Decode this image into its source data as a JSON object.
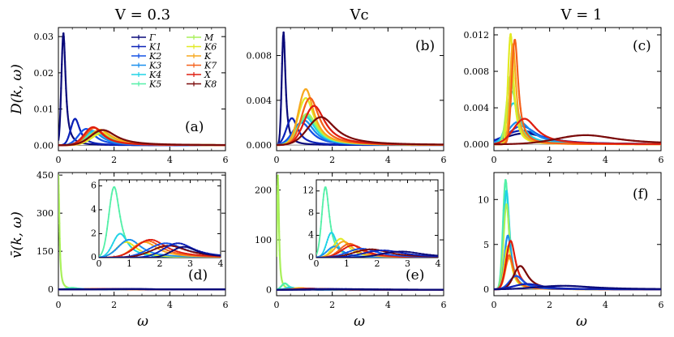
{
  "figure": {
    "column_titles": [
      "V = 0.3",
      "Vc",
      "V = 1"
    ],
    "ylabel_top": "D(k, ω)",
    "ylabel_bottom": "v̄(k, ω)",
    "xlabel": "ω"
  },
  "legend": [
    {
      "label": "Γ",
      "color": "#0a0a7a"
    },
    {
      "label": "K1",
      "color": "#0c22b8"
    },
    {
      "label": "K2",
      "color": "#1552e6"
    },
    {
      "label": "K3",
      "color": "#1b8fee"
    },
    {
      "label": "K4",
      "color": "#20d3e6"
    },
    {
      "label": "K5",
      "color": "#54f0a8"
    },
    {
      "label": "M",
      "color": "#a8f05a"
    },
    {
      "label": "K6",
      "color": "#e2ea24"
    },
    {
      "label": "K",
      "color": "#f7a81e"
    },
    {
      "label": "K7",
      "color": "#f5611a"
    },
    {
      "label": "X",
      "color": "#df1e10"
    },
    {
      "label": "K8",
      "color": "#7a0a0a"
    }
  ],
  "chart_data": [
    {
      "panel": "(a)",
      "type": "line",
      "title": "V = 0.3",
      "ylabel": "D(k, ω)",
      "xlim": [
        0,
        6
      ],
      "ylim": [
        -0.0015,
        0.0325
      ],
      "yticks": [
        "0.00",
        "0.01",
        "0.02",
        "0.03"
      ],
      "xticks": [
        "0",
        "2",
        "4",
        "6"
      ],
      "series": [
        {
          "name": "Γ",
          "peak_x": 0.18,
          "peak_y": 0.031,
          "width": 0.09
        },
        {
          "name": "K1",
          "peak_x": 0.6,
          "peak_y": 0.0073,
          "width": 0.2
        },
        {
          "name": "K2",
          "peak_x": 1.0,
          "peak_y": 0.0045,
          "width": 0.35
        },
        {
          "name": "K3",
          "peak_x": 1.2,
          "peak_y": 0.004,
          "width": 0.4
        },
        {
          "name": "K4",
          "peak_x": 1.3,
          "peak_y": 0.0038,
          "width": 0.45
        },
        {
          "name": "K5",
          "peak_x": 1.4,
          "peak_y": 0.0035,
          "width": 0.5
        },
        {
          "name": "M",
          "peak_x": 1.5,
          "peak_y": 0.0033,
          "width": 0.55
        },
        {
          "name": "K6",
          "peak_x": 1.6,
          "peak_y": 0.0034,
          "width": 0.5
        },
        {
          "name": "K",
          "peak_x": 1.5,
          "peak_y": 0.0043,
          "width": 0.45
        },
        {
          "name": "K7",
          "peak_x": 1.3,
          "peak_y": 0.0048,
          "width": 0.4
        },
        {
          "name": "X",
          "peak_x": 1.25,
          "peak_y": 0.005,
          "width": 0.4
        },
        {
          "name": "K8",
          "peak_x": 1.6,
          "peak_y": 0.0042,
          "width": 0.55
        }
      ]
    },
    {
      "panel": "(b)",
      "type": "line",
      "title": "Vc",
      "xlim": [
        0,
        6
      ],
      "ylim": [
        -0.0005,
        0.0105
      ],
      "yticks": [
        "0.000",
        "0.004",
        "0.008"
      ],
      "xticks": [
        "0",
        "2",
        "4",
        "6"
      ],
      "series": [
        {
          "name": "Γ",
          "peak_x": 0.25,
          "peak_y": 0.0101,
          "width": 0.08
        },
        {
          "name": "K1",
          "peak_x": 0.55,
          "peak_y": 0.0024,
          "width": 0.25
        },
        {
          "name": "K2",
          "peak_x": 0.9,
          "peak_y": 0.002,
          "width": 0.4
        },
        {
          "name": "K3",
          "peak_x": 1.0,
          "peak_y": 0.0022,
          "width": 0.4
        },
        {
          "name": "K4",
          "peak_x": 1.05,
          "peak_y": 0.0025,
          "width": 0.4
        },
        {
          "name": "K5",
          "peak_x": 1.1,
          "peak_y": 0.0026,
          "width": 0.4
        },
        {
          "name": "M",
          "peak_x": 1.1,
          "peak_y": 0.0028,
          "width": 0.4
        },
        {
          "name": "K6",
          "peak_x": 1.05,
          "peak_y": 0.0042,
          "width": 0.35
        },
        {
          "name": "K",
          "peak_x": 1.05,
          "peak_y": 0.005,
          "width": 0.33
        },
        {
          "name": "K7",
          "peak_x": 1.2,
          "peak_y": 0.0042,
          "width": 0.38
        },
        {
          "name": "X",
          "peak_x": 1.35,
          "peak_y": 0.0035,
          "width": 0.45
        },
        {
          "name": "K8",
          "peak_x": 1.6,
          "peak_y": 0.0025,
          "width": 0.6
        }
      ]
    },
    {
      "panel": "(c)",
      "type": "line",
      "title": "V = 1",
      "xlim": [
        0,
        6
      ],
      "ylim": [
        -0.0007,
        0.0128
      ],
      "yticks": [
        "0.000",
        "0.004",
        "0.008",
        "0.012"
      ],
      "xticks": [
        "0",
        "2",
        "4",
        "6"
      ],
      "series": [
        {
          "name": "Γ",
          "peak_x": 1.1,
          "peak_y": 0.0012,
          "width": 0.9
        },
        {
          "name": "K1",
          "peak_x": 1.0,
          "peak_y": 0.0015,
          "width": 0.8
        },
        {
          "name": "K2",
          "peak_x": 1.0,
          "peak_y": 0.002,
          "width": 0.6
        },
        {
          "name": "K3",
          "peak_x": 0.9,
          "peak_y": 0.0025,
          "width": 0.5
        },
        {
          "name": "K4",
          "peak_x": 0.7,
          "peak_y": 0.0045,
          "width": 0.3
        },
        {
          "name": "K5",
          "peak_x": 0.65,
          "peak_y": 0.0058,
          "width": 0.22
        },
        {
          "name": "M",
          "peak_x": 0.6,
          "peak_y": 0.0075,
          "width": 0.18
        },
        {
          "name": "K6",
          "peak_x": 0.6,
          "peak_y": 0.0121,
          "width": 0.12
        },
        {
          "name": "K",
          "peak_x": 0.68,
          "peak_y": 0.011,
          "width": 0.13
        },
        {
          "name": "K7",
          "peak_x": 0.75,
          "peak_y": 0.0115,
          "width": 0.14
        },
        {
          "name": "X",
          "peak_x": 1.1,
          "peak_y": 0.0028,
          "width": 0.5
        },
        {
          "name": "K8",
          "peak_x": 3.3,
          "peak_y": 0.001,
          "width": 1.3
        }
      ]
    },
    {
      "panel": "(d)",
      "type": "line",
      "ylabel": "v̄(k, ω)",
      "xlabel": "ω",
      "xlim": [
        0,
        6
      ],
      "ylim": [
        -25,
        460
      ],
      "yticks": [
        "0",
        "150",
        "300",
        "450"
      ],
      "xticks": [
        "0",
        "2",
        "4",
        "6"
      ],
      "inset": {
        "xlim": [
          0,
          4
        ],
        "ylim": [
          0,
          6.5
        ],
        "xticks": [
          "0",
          "1",
          "2",
          "3",
          "4"
        ],
        "yticks": [
          "0",
          "2",
          "4",
          "6"
        ]
      },
      "series": [
        {
          "name": "M",
          "peak_x": 0.0,
          "peak_y": 450,
          "width": 0.04
        },
        {
          "name": "K5",
          "peak_x": 0.5,
          "peak_y": 5.9,
          "width": 0.22
        },
        {
          "name": "K4",
          "peak_x": 0.7,
          "peak_y": 2.0,
          "width": 0.3
        },
        {
          "name": "K6",
          "peak_x": 0.9,
          "peak_y": 1.3,
          "width": 0.4
        },
        {
          "name": "K3",
          "peak_x": 1.0,
          "peak_y": 1.5,
          "width": 0.45
        },
        {
          "name": "K",
          "peak_x": 1.5,
          "peak_y": 1.3,
          "width": 0.5
        },
        {
          "name": "K7",
          "peak_x": 1.6,
          "peak_y": 1.4,
          "width": 0.55
        },
        {
          "name": "X",
          "peak_x": 1.7,
          "peak_y": 1.5,
          "width": 0.6
        },
        {
          "name": "K2",
          "peak_x": 2.2,
          "peak_y": 1.2,
          "width": 0.7
        },
        {
          "name": "K8",
          "peak_x": 2.3,
          "peak_y": 1.0,
          "width": 0.7
        },
        {
          "name": "K1",
          "peak_x": 2.6,
          "peak_y": 1.2,
          "width": 0.6
        },
        {
          "name": "Γ",
          "peak_x": 2.8,
          "peak_y": 0.9,
          "width": 0.5
        }
      ]
    },
    {
      "panel": "(e)",
      "type": "line",
      "xlabel": "ω",
      "xlim": [
        0,
        6
      ],
      "ylim": [
        -12,
        235
      ],
      "yticks": [
        "0",
        "100",
        "200"
      ],
      "xticks": [
        "0",
        "2",
        "4",
        "6"
      ],
      "inset": {
        "xlim": [
          0,
          4
        ],
        "ylim": [
          0,
          14
        ],
        "xticks": [
          "0",
          "1",
          "2",
          "3",
          "4"
        ],
        "yticks": [
          "0",
          "4",
          "8",
          "12"
        ]
      },
      "series": [
        {
          "name": "M",
          "peak_x": 0.05,
          "peak_y": 230,
          "width": 0.04
        },
        {
          "name": "K5",
          "peak_x": 0.3,
          "peak_y": 12.7,
          "width": 0.15
        },
        {
          "name": "K4",
          "peak_x": 0.5,
          "peak_y": 4.5,
          "width": 0.2
        },
        {
          "name": "K6",
          "peak_x": 0.8,
          "peak_y": 3.4,
          "width": 0.3
        },
        {
          "name": "K3",
          "peak_x": 0.6,
          "peak_y": 2.0,
          "width": 0.3
        },
        {
          "name": "K",
          "peak_x": 0.9,
          "peak_y": 2.9,
          "width": 0.35
        },
        {
          "name": "K7",
          "peak_x": 1.1,
          "peak_y": 2.5,
          "width": 0.4
        },
        {
          "name": "X",
          "peak_x": 1.2,
          "peak_y": 2.2,
          "width": 0.45
        },
        {
          "name": "K2",
          "peak_x": 1.5,
          "peak_y": 1.6,
          "width": 0.6
        },
        {
          "name": "K8",
          "peak_x": 1.8,
          "peak_y": 1.5,
          "width": 0.7
        },
        {
          "name": "K1",
          "peak_x": 2.2,
          "peak_y": 1.3,
          "width": 0.8
        },
        {
          "name": "Γ",
          "peak_x": 2.8,
          "peak_y": 1.1,
          "width": 0.8
        }
      ]
    },
    {
      "panel": "(f)",
      "type": "line",
      "xlabel": "ω",
      "xlim": [
        0,
        6
      ],
      "ylim": [
        -0.7,
        13
      ],
      "yticks": [
        "0",
        "5",
        "10"
      ],
      "xticks": [
        "0",
        "2",
        "4",
        "6"
      ],
      "series": [
        {
          "name": "K5",
          "peak_x": 0.42,
          "peak_y": 12.2,
          "width": 0.12
        },
        {
          "name": "K4",
          "peak_x": 0.45,
          "peak_y": 11.0,
          "width": 0.13
        },
        {
          "name": "M",
          "peak_x": 0.45,
          "peak_y": 9.5,
          "width": 0.13
        },
        {
          "name": "K3",
          "peak_x": 0.5,
          "peak_y": 6.0,
          "width": 0.15
        },
        {
          "name": "K6",
          "peak_x": 0.5,
          "peak_y": 4.8,
          "width": 0.15
        },
        {
          "name": "K",
          "peak_x": 0.55,
          "peak_y": 3.5,
          "width": 0.18
        },
        {
          "name": "K7",
          "peak_x": 0.55,
          "peak_y": 3.8,
          "width": 0.18
        },
        {
          "name": "X",
          "peak_x": 0.6,
          "peak_y": 5.4,
          "width": 0.2
        },
        {
          "name": "K2",
          "peak_x": 0.8,
          "peak_y": 1.5,
          "width": 0.3
        },
        {
          "name": "K8",
          "peak_x": 0.95,
          "peak_y": 2.6,
          "width": 0.3
        },
        {
          "name": "K1",
          "peak_x": 1.2,
          "peak_y": 0.6,
          "width": 0.6
        },
        {
          "name": "Γ",
          "peak_x": 2.5,
          "peak_y": 0.4,
          "width": 1.2
        }
      ]
    }
  ]
}
